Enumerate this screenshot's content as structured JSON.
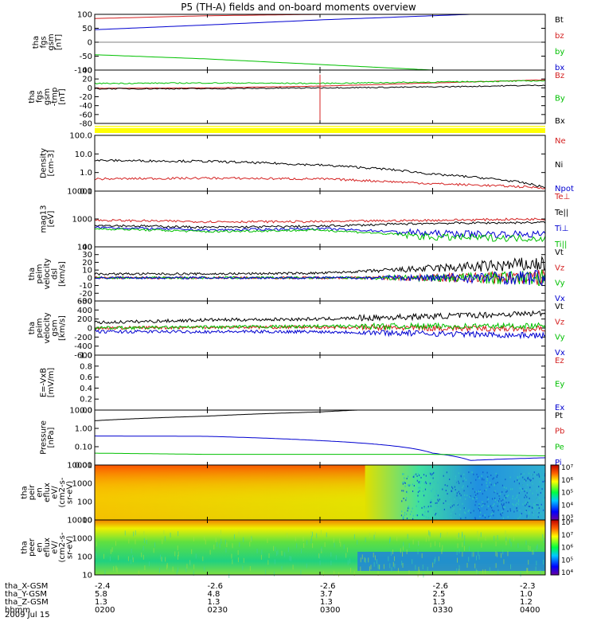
{
  "title": "P5 (TH-A) fields and on-board moments overview",
  "date": "2009 Jul 15",
  "panels": [
    {
      "id": "p1",
      "ylabel": [
        "tha",
        "fgs",
        "gsm",
        "[nT]"
      ],
      "ticks": [
        "100",
        "50",
        "0",
        "-50",
        "-100"
      ],
      "legend": [
        {
          "t": "Bt",
          "c": "#000000"
        },
        {
          "t": "bz",
          "c": "#d42020"
        },
        {
          "t": "by",
          "c": "#00c000"
        },
        {
          "t": "bx",
          "c": "#0000d0"
        }
      ]
    },
    {
      "id": "p2",
      "ylabel": [
        "tha",
        "fgs",
        "gsm",
        "-tmp",
        "[nT]"
      ],
      "ticks": [
        "40",
        "20",
        "0",
        "-20",
        "-40",
        "-60",
        "-80"
      ],
      "legend": [
        {
          "t": "Bz",
          "c": "#d42020"
        },
        {
          "t": "By",
          "c": "#00c000"
        },
        {
          "t": "Bx",
          "c": "#000000"
        }
      ]
    },
    {
      "id": "p3",
      "ylabel": [
        "Density",
        "[cm-3]"
      ],
      "ticks": [
        "100.0",
        "10.0",
        "1.0",
        "0.1"
      ],
      "legend": [
        {
          "t": "Ne",
          "c": "#d42020"
        },
        {
          "t": "Ni",
          "c": "#000000"
        },
        {
          "t": "Npot",
          "c": "#0000d0"
        }
      ]
    },
    {
      "id": "p4",
      "ylabel": [
        "mag13",
        "[eV]"
      ],
      "ticks": [
        "10000",
        "1000",
        "100"
      ],
      "legend": [
        {
          "t": "Te⊥",
          "c": "#d42020"
        },
        {
          "t": "Te||",
          "c": "#000000"
        },
        {
          "t": "Ti⊥",
          "c": "#0000d0"
        },
        {
          "t": "Ti||",
          "c": "#00c000"
        }
      ]
    },
    {
      "id": "p5",
      "ylabel": [
        "tha",
        "peim",
        "velocity",
        "dsl",
        "[km/s]"
      ],
      "ticks": [
        "40",
        "30",
        "20",
        "10",
        "0",
        "-10",
        "-20",
        "-30"
      ],
      "legend": [
        {
          "t": "Vt",
          "c": "#000000"
        },
        {
          "t": "Vz",
          "c": "#d42020"
        },
        {
          "t": "Vy",
          "c": "#00c000"
        },
        {
          "t": "Vx",
          "c": "#0000d0"
        }
      ]
    },
    {
      "id": "p6",
      "ylabel": [
        "tha",
        "peim",
        "velocity",
        "gsm",
        "[km/s]"
      ],
      "ticks": [
        "600",
        "400",
        "200",
        "0",
        "-200",
        "-400",
        "-600"
      ],
      "legend": [
        {
          "t": "Vt",
          "c": "#000000"
        },
        {
          "t": "Vz",
          "c": "#d42020"
        },
        {
          "t": "Vy",
          "c": "#00c000"
        },
        {
          "t": "Vx",
          "c": "#0000d0"
        }
      ]
    },
    {
      "id": "p7",
      "ylabel": [
        "E=-VxB",
        "[mV/m]"
      ],
      "ticks": [
        "1.0",
        "0.8",
        "0.6",
        "0.4",
        "0.2",
        "0.0"
      ],
      "legend": [
        {
          "t": "Ez",
          "c": "#d42020"
        },
        {
          "t": "Ey",
          "c": "#00c000"
        },
        {
          "t": "Ex",
          "c": "#0000d0"
        }
      ]
    },
    {
      "id": "p8",
      "ylabel": [
        "Pressure",
        "[nPa]"
      ],
      "ticks": [
        "10.00",
        "1.00",
        "0.10",
        "0.01"
      ],
      "legend": [
        {
          "t": "Pt",
          "c": "#000000"
        },
        {
          "t": "Pb",
          "c": "#d42020"
        },
        {
          "t": "Pe",
          "c": "#00c000"
        },
        {
          "t": "Pi",
          "c": "#0000d0"
        }
      ]
    },
    {
      "id": "p9",
      "ylabel": [
        "tha",
        "peir",
        "en",
        "eflux",
        "eV/",
        "(cm2-s-",
        "sr-eV)"
      ],
      "ticks": [
        "10000",
        "1000",
        "100",
        "10"
      ],
      "cbar": [
        "10⁷",
        "10⁶",
        "10⁵",
        "10⁴",
        "10³"
      ]
    },
    {
      "id": "p10",
      "ylabel": [
        "tha",
        "peer",
        "en",
        "eflux",
        "eV/",
        "(cm2-s-",
        "sr-eV)"
      ],
      "ticks": [
        "10000",
        "1000",
        "100",
        "10"
      ],
      "cbar": [
        "10⁸",
        "10⁷",
        "10⁶",
        "10⁵",
        "10⁴"
      ]
    }
  ],
  "footer": {
    "rows": [
      {
        "label": "tha_X-GSM",
        "vals": [
          "-2.4",
          "-2.6",
          "-2.6",
          "-2.6",
          "-2.3"
        ]
      },
      {
        "label": "tha_Y-GSM",
        "vals": [
          "5.8",
          "4.8",
          "3.7",
          "2.5",
          "1.0"
        ]
      },
      {
        "label": "tha_Z-GSM",
        "vals": [
          "1.3",
          "1.3",
          "1.3",
          "1.3",
          "1.2"
        ]
      },
      {
        "label": "hhmm",
        "vals": [
          "0200",
          "0230",
          "0300",
          "0330",
          "0400"
        ]
      }
    ]
  },
  "chart_data": {
    "type": "line",
    "x_time_hhmm": [
      "0200",
      "0230",
      "0300",
      "0330",
      "0400"
    ],
    "panels": [
      {
        "panel": "fgs gsm",
        "series": [
          {
            "name": "Bt",
            "x": [
              "0200",
              "0300"
            ],
            "values": [
              110,
              120
            ]
          },
          {
            "name": "bz",
            "x": [
              "0200",
              "0230",
              "0300",
              "0330",
              "0400"
            ],
            "values": [
              85,
              95,
              100,
              105,
              110
            ]
          },
          {
            "name": "bx",
            "x": [
              "0200",
              "0230",
              "0300",
              "0330",
              "0400"
            ],
            "values": [
              45,
              62,
              80,
              95,
              110
            ]
          },
          {
            "name": "by",
            "x": [
              "0200",
              "0230",
              "0300",
              "0330",
              "0400"
            ],
            "values": [
              -45,
              -60,
              -80,
              -100,
              -115
            ]
          }
        ]
      },
      {
        "panel": "fgs gsm -tmp",
        "series": [
          {
            "name": "Bz",
            "x": [
              "0200",
              "0230",
              "0300",
              "0330",
              "0400"
            ],
            "values": [
              -1,
              0,
              4,
              11,
              18
            ]
          },
          {
            "name": "By",
            "x": [
              "0200",
              "0230",
              "0300",
              "0330",
              "0400"
            ],
            "values": [
              10,
              11,
              10,
              13,
              16
            ]
          },
          {
            "name": "Bx",
            "x": [
              "0200",
              "0230",
              "0300",
              "0330",
              "0400"
            ],
            "values": [
              -2,
              -2,
              0,
              2,
              6
            ]
          }
        ]
      },
      {
        "panel": "Density",
        "series": [
          {
            "name": "Ni",
            "x": [
              "0200",
              "0230",
              "0300",
              "0330",
              "0400"
            ],
            "values": [
              4.5,
              4.0,
              2.5,
              0.8,
              0.15
            ]
          },
          {
            "name": "Ne",
            "x": [
              "0200",
              "0230",
              "0300",
              "0330",
              "0400"
            ],
            "values": [
              0.45,
              0.5,
              0.45,
              0.25,
              0.15
            ]
          },
          {
            "name": "Npot",
            "x": [
              "0200",
              "0230",
              "0300",
              "0330",
              "0400"
            ],
            "values": [
              200,
              150,
              200,
              250,
              300
            ]
          }
        ]
      },
      {
        "panel": "Temperature",
        "series": [
          {
            "name": "Te⊥",
            "x": [
              "0200",
              "0230",
              "0300",
              "0330",
              "0400"
            ],
            "values": [
              900,
              800,
              800,
              900,
              1000
            ]
          },
          {
            "name": "Te||",
            "x": [
              "0200",
              "0230",
              "0300",
              "0330",
              "0400"
            ],
            "values": [
              600,
              500,
              550,
              700,
              750
            ]
          },
          {
            "name": "Ti⊥",
            "x": [
              "0200",
              "0230",
              "0300",
              "0330",
              "0400"
            ],
            "values": [
              500,
              400,
              450,
              300,
              280
            ]
          },
          {
            "name": "Ti||",
            "x": [
              "0200",
              "0230",
              "0300",
              "0330",
              "0400"
            ],
            "values": [
              450,
              350,
              400,
              220,
              200
            ]
          }
        ]
      },
      {
        "panel": "velocity dsl",
        "series": [
          {
            "name": "Vt",
            "x": [
              "0200",
              "0230",
              "0300",
              "0330",
              "0400"
            ],
            "values": [
              5,
              5,
              6,
              12,
              18
            ]
          },
          {
            "name": "Vz",
            "x": [
              "0200",
              "0230",
              "0300",
              "0330",
              "0400"
            ],
            "values": [
              0,
              0,
              0,
              0,
              0
            ]
          },
          {
            "name": "Vy",
            "x": [
              "0200",
              "0230",
              "0300",
              "0330",
              "0400"
            ],
            "values": [
              0,
              0,
              0,
              0,
              0
            ]
          },
          {
            "name": "Vx",
            "x": [
              "0200",
              "0230",
              "0300",
              "0330",
              "0400"
            ],
            "values": [
              0,
              0,
              0,
              0,
              0
            ]
          }
        ]
      },
      {
        "panel": "velocity gsm",
        "series": [
          {
            "name": "Vt",
            "x": [
              "0200",
              "0230",
              "0300",
              "0330",
              "0400"
            ],
            "values": [
              120,
              180,
              200,
              260,
              330
            ]
          },
          {
            "name": "Vz",
            "x": [
              "0200",
              "0230",
              "0300",
              "0330",
              "0400"
            ],
            "values": [
              0,
              20,
              20,
              0,
              -20
            ]
          },
          {
            "name": "Vy",
            "x": [
              "0200",
              "0230",
              "0300",
              "0330",
              "0400"
            ],
            "values": [
              0,
              20,
              40,
              40,
              50
            ]
          },
          {
            "name": "Vx",
            "x": [
              "0200",
              "0230",
              "0300",
              "0330",
              "0400"
            ],
            "values": [
              -80,
              -80,
              -80,
              -120,
              -170
            ]
          }
        ]
      },
      {
        "panel": "E=-VxB",
        "series": []
      },
      {
        "panel": "Pressure",
        "series": [
          {
            "name": "Pt",
            "x": [
              "0200",
              "0230",
              "0300",
              "0310"
            ],
            "values": [
              4,
              8,
              15,
              20
            ]
          },
          {
            "name": "Pi",
            "x": [
              "0200",
              "0230",
              "0300",
              "0330",
              "0340",
              "0400"
            ],
            "values": [
              0.4,
              0.38,
              0.2,
              0.03,
              0.01,
              0.015
            ]
          },
          {
            "name": "Pe",
            "x": [
              "0200",
              "0230",
              "0300",
              "0330",
              "0400"
            ],
            "values": [
              0.03,
              0.025,
              0.025,
              0.025,
              0.02
            ]
          }
        ]
      }
    ]
  }
}
